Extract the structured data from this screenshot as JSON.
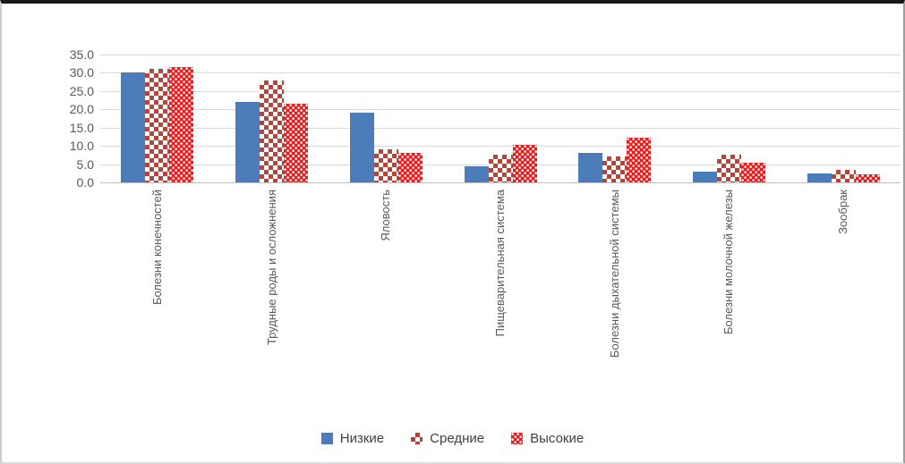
{
  "chart_data": {
    "type": "bar",
    "title": "",
    "xlabel": "",
    "ylabel": "",
    "categories": [
      "Болезни конечностей",
      "Трудные роды и осложнения",
      "Яловость",
      "Пищеварительная система",
      "Болезни дыхательной системы",
      "Болезни молочной железы",
      "Зообрак"
    ],
    "series": [
      {
        "name": "Низкие",
        "color": "#4D7CBA",
        "pattern": "solid",
        "values": [
          30,
          22,
          19,
          4.5,
          8,
          3,
          2.5
        ]
      },
      {
        "name": "Средние",
        "color": "#B2463C",
        "pattern": "checker",
        "values": [
          31,
          28,
          9,
          7.5,
          7,
          7.5,
          3.5
        ]
      },
      {
        "name": "Высокие",
        "color": "#EC1C1C",
        "pattern": "dots",
        "values": [
          31.5,
          21.5,
          8,
          10.3,
          12.3,
          5.5,
          2.3
        ]
      }
    ],
    "ylim": [
      0,
      35
    ],
    "ytick_step": 5,
    "ytick_labels": [
      "0.0",
      "5.0",
      "10.0",
      "15.0",
      "20.0",
      "25.0",
      "30.0",
      "35.0"
    ],
    "grid": "horizontal",
    "legend_position": "bottom",
    "colors": {
      "gridline": "#d9d9d9",
      "axis_line": "#bdbdbd",
      "tick_text": "#595959",
      "category_text": "#595959",
      "legend_text": "#3f3f3f"
    }
  }
}
